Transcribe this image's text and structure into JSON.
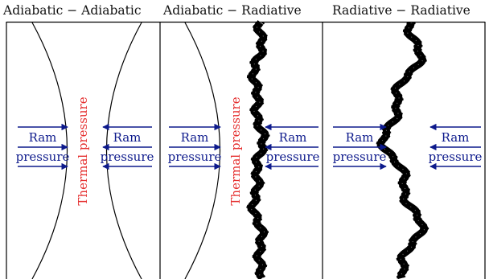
{
  "titles": [
    "Adiabatic − Adiabatic",
    "Adiabatic − Radiative",
    "Radiative − Radiative"
  ],
  "labels": {
    "ram_line1": "Ram",
    "ram_line2": "pressure",
    "thermal": "Thermal pressure"
  },
  "colors": {
    "ram": "#0d1a8c",
    "thermal": "#e53030",
    "shock": "#000000",
    "frame": "#000000"
  }
}
